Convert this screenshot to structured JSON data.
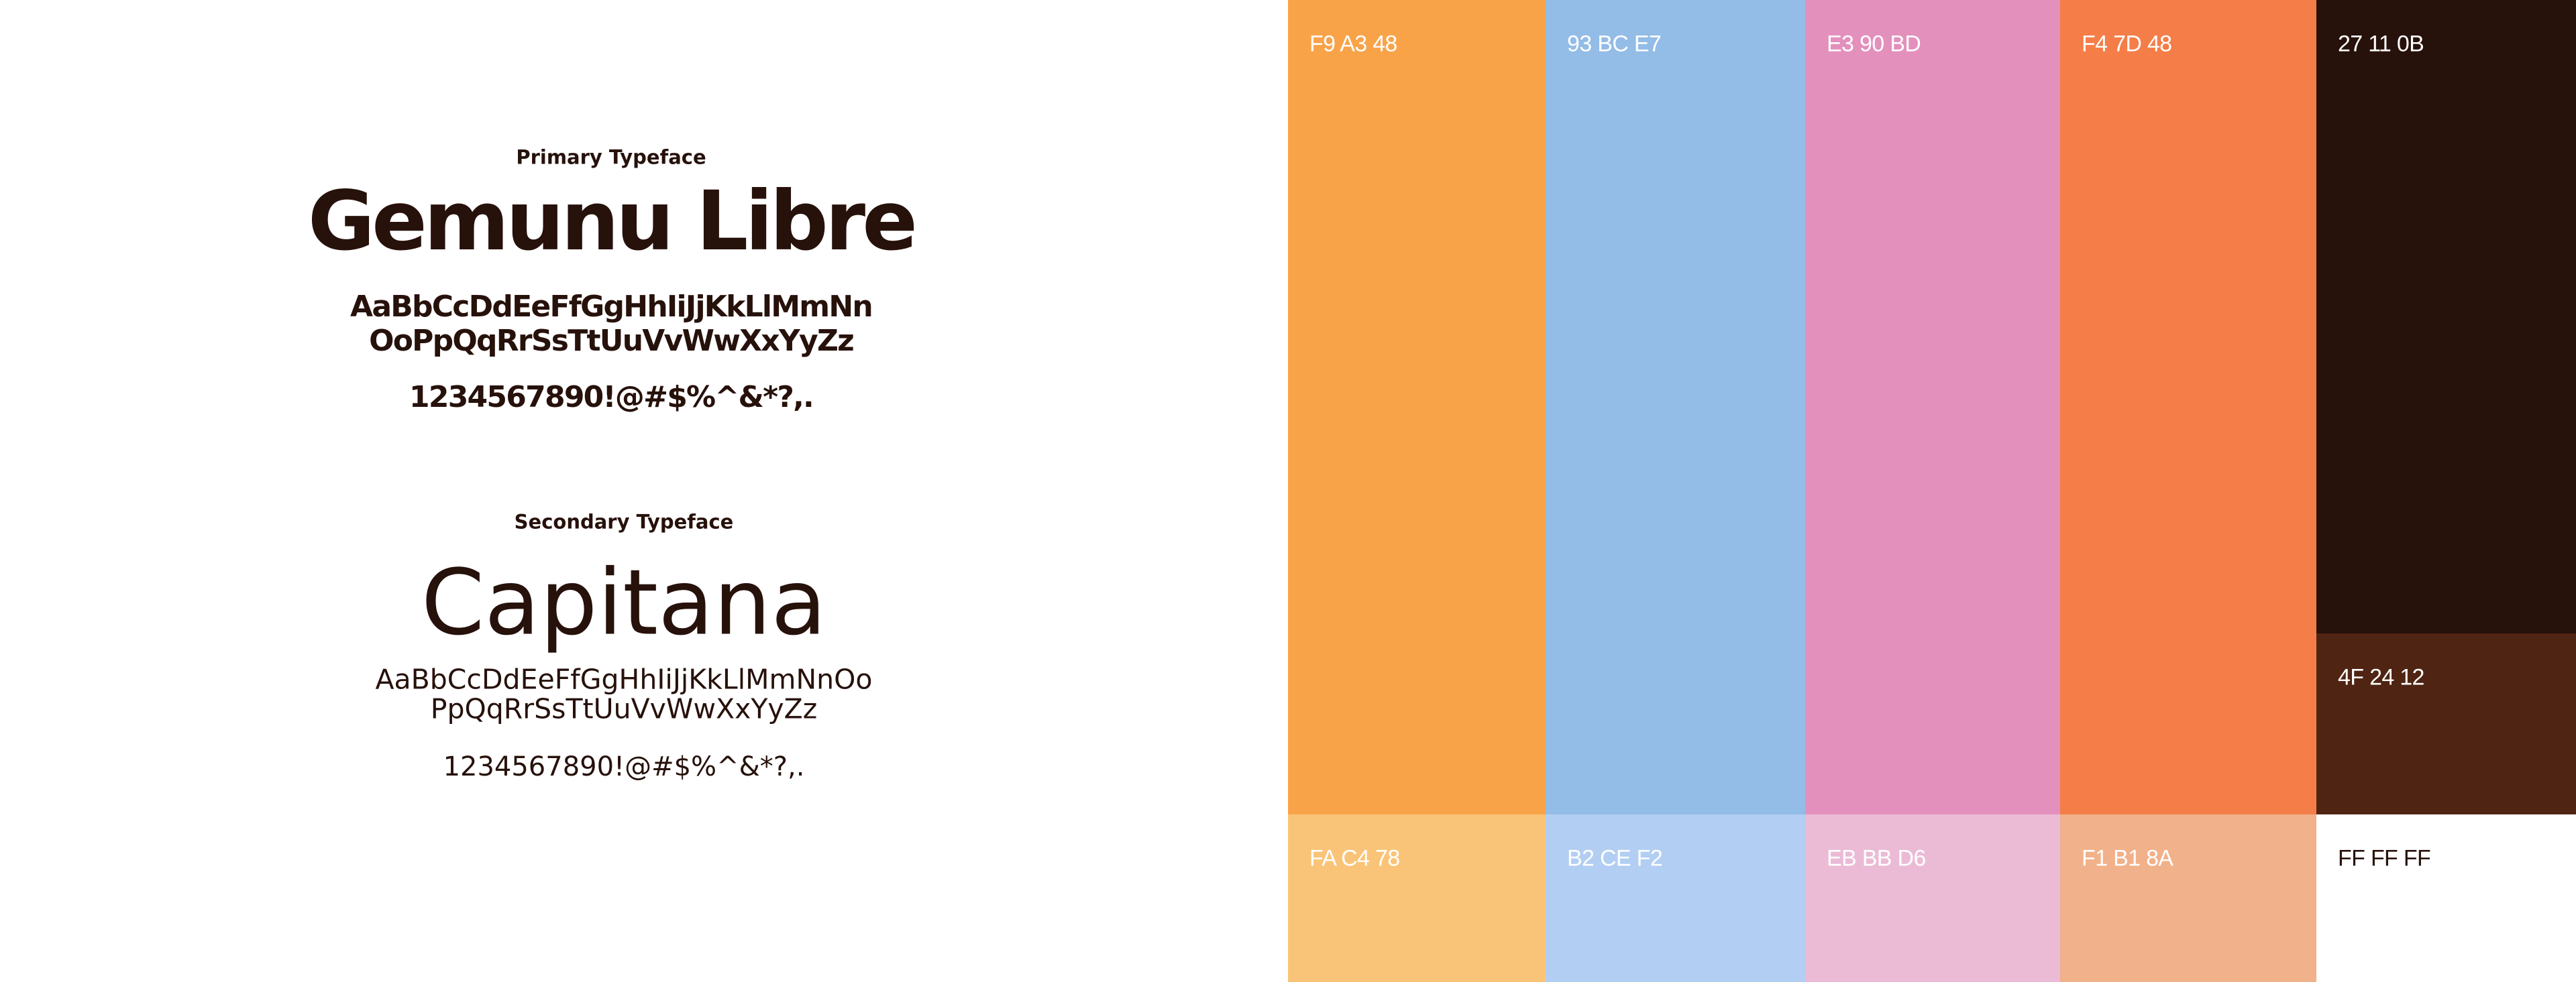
{
  "typefaces": [
    {
      "heading": "Primary Typeface",
      "name": "Gemunu Libre",
      "alphabet": [
        "AaBbCcDdEeFfGgHhIiJjKkLlMmNn",
        "OoPpQqRrSsTtUuVvWwXxYyZz"
      ],
      "numbers": "1234567890!@#$%^&*?,."
    },
    {
      "heading": "Secondary Typeface",
      "name": "Capitana",
      "alphabet": [
        "AaBbCcDdEeFfGgHhIiJjKkLlMmNnOo",
        "PpQqRrSsTtUuVvWwXxYyZz"
      ],
      "numbers": "1234567890!@#$%^&*?,."
    }
  ],
  "palette": [
    [
      {
        "label": "F9 A3 48",
        "color": "#F9A348"
      },
      {
        "label": "FA C4 78",
        "color": "#FAC478"
      }
    ],
    [
      {
        "label": "93 BC E7",
        "color": "#93BCE7"
      },
      {
        "label": "B2 CE F2",
        "color": "#B2CEF2"
      }
    ],
    [
      {
        "label": "E3 90 BD",
        "color": "#E390BD"
      },
      {
        "label": "EB BB D6",
        "color": "#EBBBD6"
      }
    ],
    [
      {
        "label": "F4 7D 48",
        "color": "#F47D48"
      },
      {
        "label": "F1 B1 8A",
        "color": "#F1B18A"
      }
    ],
    [
      {
        "label": "27 11 0B",
        "color": "#27110B"
      },
      {
        "label": "4F 24 12",
        "color": "#4F2412"
      },
      {
        "label": "FF FF FF",
        "color": "#FFFFFF"
      }
    ]
  ]
}
